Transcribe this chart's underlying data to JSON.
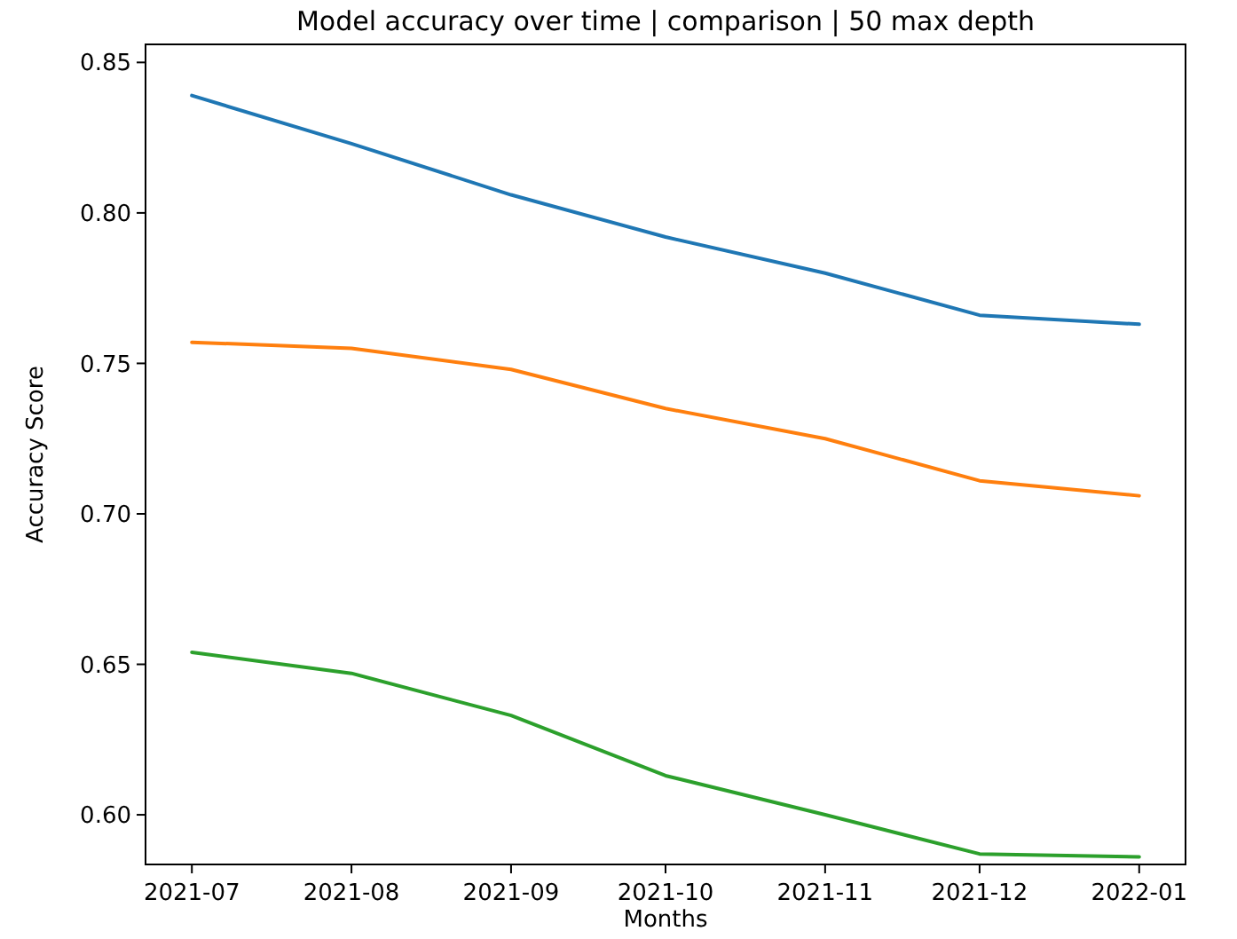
{
  "chart_data": {
    "type": "line",
    "title": "Model accuracy over time | comparison | 50 max depth",
    "xlabel": "Months",
    "ylabel": "Accuracy Score",
    "x": [
      "2021-07-01",
      "2021-08-01",
      "2021-09-01",
      "2021-10-01",
      "2021-11-01",
      "2021-12-01",
      "2022-01-01"
    ],
    "series": [
      {
        "color": "#1f77b4",
        "values": [
          0.839,
          0.823,
          0.806,
          0.792,
          0.78,
          0.766,
          0.763
        ]
      },
      {
        "color": "#ff7f0e",
        "values": [
          0.757,
          0.755,
          0.748,
          0.735,
          0.725,
          0.711,
          0.706
        ]
      },
      {
        "color": "#2ca02c",
        "values": [
          0.654,
          0.647,
          0.633,
          0.613,
          0.6,
          0.587,
          0.586
        ]
      }
    ],
    "xlim": [
      "2021-06-22",
      "2022-01-10"
    ],
    "xticks": [
      {
        "value": "2021-07-01",
        "label": "2021-07"
      },
      {
        "value": "2021-08-01",
        "label": "2021-08"
      },
      {
        "value": "2021-09-01",
        "label": "2021-09"
      },
      {
        "value": "2021-10-01",
        "label": "2021-10"
      },
      {
        "value": "2021-11-01",
        "label": "2021-11"
      },
      {
        "value": "2021-12-01",
        "label": "2021-12"
      },
      {
        "value": "2022-01-01",
        "label": "2022-01"
      }
    ],
    "ylim": [
      0.5835,
      0.856
    ],
    "yticks": [
      {
        "value": 0.6,
        "label": "0.60"
      },
      {
        "value": 0.65,
        "label": "0.65"
      },
      {
        "value": 0.7,
        "label": "0.70"
      },
      {
        "value": 0.75,
        "label": "0.75"
      },
      {
        "value": 0.8,
        "label": "0.80"
      },
      {
        "value": 0.85,
        "label": "0.85"
      }
    ],
    "grid": false,
    "marker": "none",
    "line_style": "solid"
  }
}
